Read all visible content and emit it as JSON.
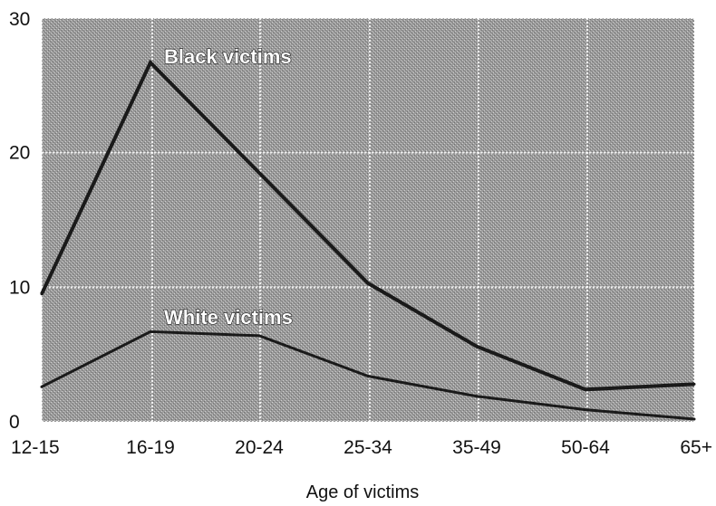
{
  "chart_data": {
    "type": "line",
    "categories": [
      "12-15",
      "16-19",
      "20-24",
      "25-34",
      "35-49",
      "50-64",
      "65+"
    ],
    "series": [
      {
        "name": "Black victims",
        "values": [
          9.5,
          26.7,
          18.5,
          10.3,
          5.6,
          2.4,
          2.8
        ],
        "color": "#1a1a1a"
      },
      {
        "name": "White victims",
        "values": [
          2.6,
          6.7,
          6.4,
          3.4,
          1.9,
          0.9,
          0.2
        ],
        "color": "#1a1a1a"
      }
    ],
    "xlabel": "Age of victims",
    "ylabel": "",
    "ylim": [
      0,
      30
    ],
    "yticks": [
      0,
      10,
      20,
      30
    ],
    "grid": true,
    "plot_background": "#9c9c9c"
  }
}
